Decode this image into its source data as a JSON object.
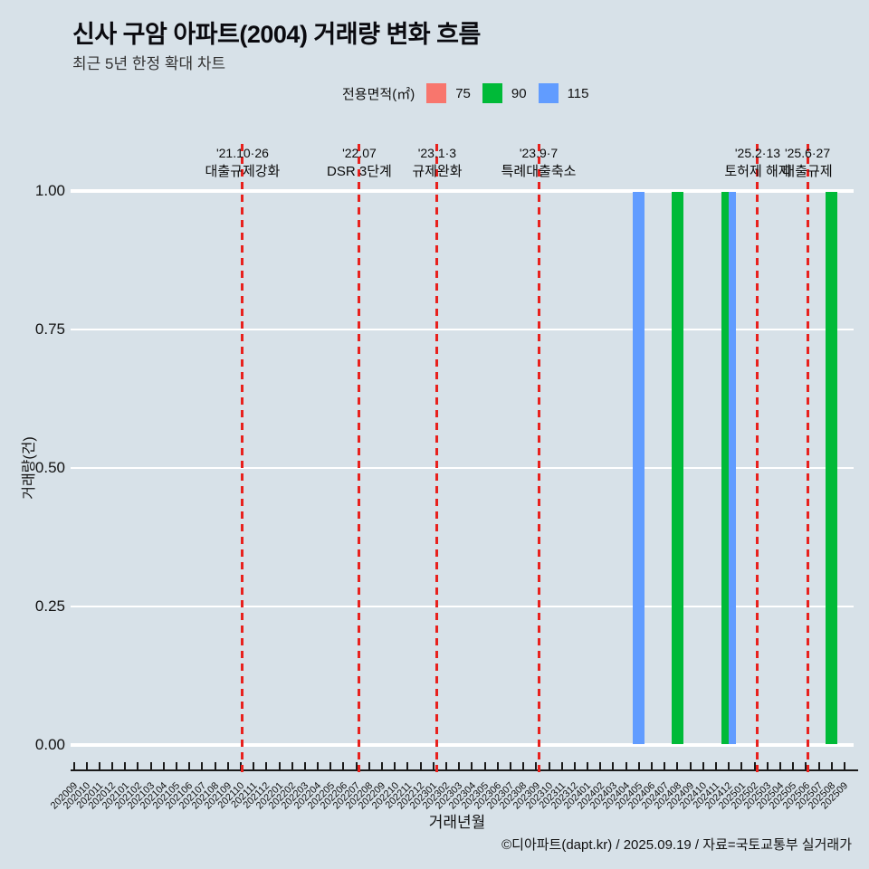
{
  "title": "신사 구암 아파트(2004) 거래량 변화 흐름",
  "subtitle": "최근 5년 한정 확대 차트",
  "legend": {
    "label": "전용면적(㎡)",
    "items": [
      {
        "label": "75",
        "color": "#F8766D"
      },
      {
        "label": "90",
        "color": "#00BA38"
      },
      {
        "label": "115",
        "color": "#619CFF"
      }
    ]
  },
  "colors": {
    "background": "#d7e1e8",
    "gridline": "#ffffff",
    "axis": "#1a1a1a",
    "annotation_line": "#e8211d"
  },
  "chart_data": {
    "type": "bar",
    "title": "신사 구암 아파트(2004) 거래량 변화 흐름",
    "subtitle": "최근 5년 한정 확대 차트",
    "xlabel": "거래년월",
    "ylabel": "거래량(건)",
    "ylim": [
      0,
      1
    ],
    "grid": "horizontal-white",
    "legend_position": "top",
    "yticks": [
      {
        "value": 1.0,
        "label": "1.00"
      },
      {
        "value": 0.75,
        "label": "0.75"
      },
      {
        "value": 0.5,
        "label": "0.50"
      },
      {
        "value": 0.25,
        "label": "0.25"
      },
      {
        "value": 0.0,
        "label": "0.00"
      }
    ],
    "categories": [
      "202009",
      "202010",
      "202011",
      "202012",
      "202101",
      "202102",
      "202103",
      "202104",
      "202105",
      "202106",
      "202107",
      "202108",
      "202109",
      "202110",
      "202111",
      "202112",
      "202201",
      "202202",
      "202203",
      "202204",
      "202205",
      "202206",
      "202207",
      "202208",
      "202209",
      "202210",
      "202211",
      "202212",
      "202301",
      "202302",
      "202303",
      "202304",
      "202305",
      "202306",
      "202307",
      "202308",
      "202309",
      "202310",
      "202311",
      "202312",
      "202401",
      "202402",
      "202403",
      "202404",
      "202405",
      "202406",
      "202407",
      "202408",
      "202409",
      "202410",
      "202411",
      "202412",
      "202501",
      "202502",
      "202503",
      "202504",
      "202505",
      "202506",
      "202507",
      "202508",
      "202509"
    ],
    "series": [
      {
        "name": "75",
        "color": "#F8766D",
        "points": []
      },
      {
        "name": "90",
        "color": "#00BA38",
        "points": [
          {
            "month": "202408",
            "value": 1
          },
          {
            "month": "202412",
            "value": 1
          },
          {
            "month": "202508",
            "value": 1
          }
        ]
      },
      {
        "name": "115",
        "color": "#619CFF",
        "points": [
          {
            "month": "202405",
            "value": 1
          },
          {
            "month": "202412",
            "value": 1
          }
        ]
      }
    ],
    "annotations": [
      {
        "date": "'21.10·26",
        "label": "대출규제강화",
        "x_index": 13.14
      },
      {
        "date": "'22.07",
        "label": "DSR 3단계",
        "x_index": 22.23
      },
      {
        "date": "'23.1·3",
        "label": "규제완화",
        "x_index": 28.29
      },
      {
        "date": "'23.9·7",
        "label": "특례대출축소",
        "x_index": 36.19
      },
      {
        "date": "'25.2·13",
        "label": "토허제 해제",
        "x_index": 53.24
      },
      {
        "date": "'25.6·27",
        "label": "대출규제",
        "x_index": 57.12
      }
    ]
  },
  "footer": "©디아파트(dapt.kr) / 2025.09.19 / 자료=국토교통부 실거래가"
}
